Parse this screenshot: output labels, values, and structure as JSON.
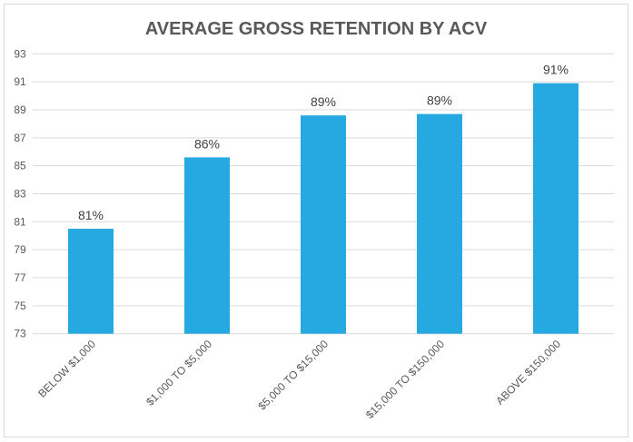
{
  "chart_data": {
    "type": "bar",
    "title": "AVERAGE GROSS RETENTION BY ACV",
    "categories": [
      "BELOW $1,000",
      "$1,000 TO $5,000",
      "$5,000 TO $15,000",
      "$15,000 TO $150,000",
      "ABOVE $150,000"
    ],
    "values": [
      80.5,
      85.6,
      88.6,
      88.7,
      90.9
    ],
    "data_labels": [
      "81%",
      "86%",
      "89%",
      "89%",
      "91%"
    ],
    "ylim": [
      73,
      93
    ],
    "yticks": [
      "73",
      "75",
      "77",
      "79",
      "81",
      "83",
      "85",
      "87",
      "89",
      "91",
      "93"
    ],
    "xlabel": "",
    "ylabel": "",
    "grid": true,
    "bar_color": "#26a8e0"
  }
}
